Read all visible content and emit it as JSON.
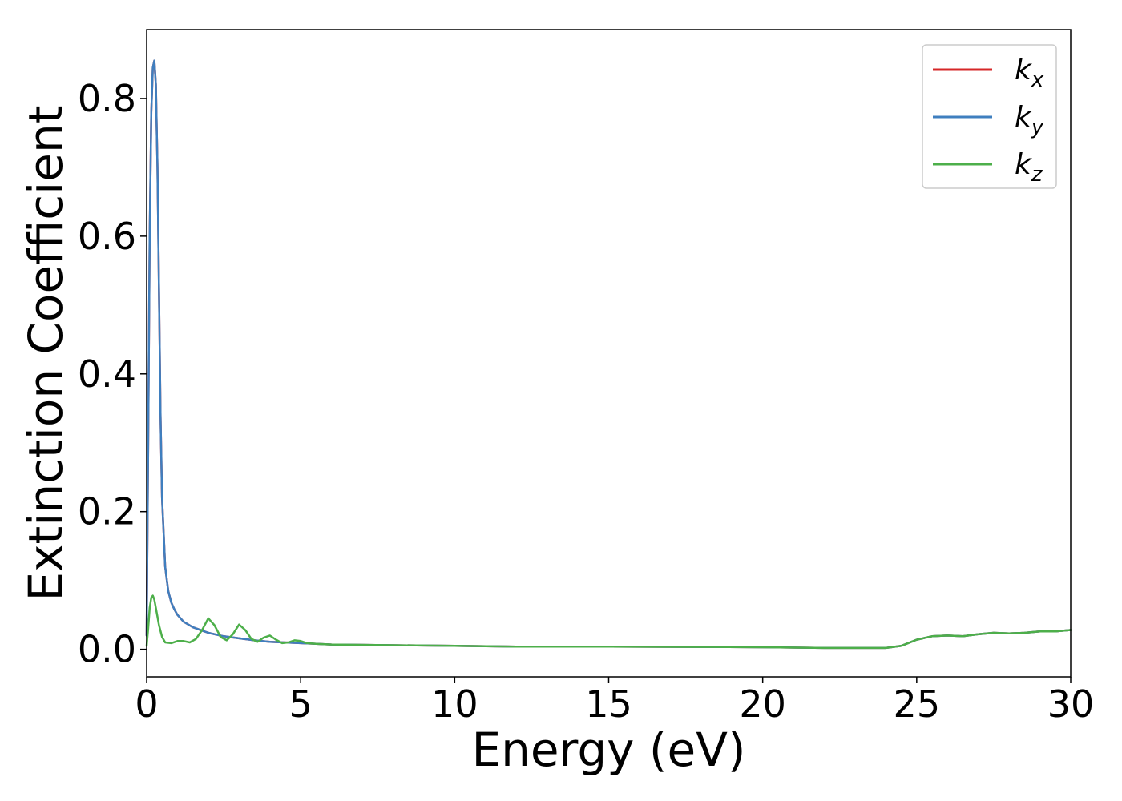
{
  "chart_data": {
    "type": "line",
    "title": "",
    "xlabel": "Energy (eV)",
    "ylabel": "Extinction Coefficient",
    "xlim": [
      0,
      30
    ],
    "ylim": [
      -0.04,
      0.9
    ],
    "xticks": [
      0,
      5,
      10,
      15,
      20,
      25,
      30
    ],
    "xtick_labels": [
      "0",
      "5",
      "10",
      "15",
      "20",
      "25",
      "30"
    ],
    "yticks": [
      0.0,
      0.2,
      0.4,
      0.6,
      0.8
    ],
    "ytick_labels": [
      "0.0",
      "0.2",
      "0.4",
      "0.6",
      "0.8"
    ],
    "grid": false,
    "legend_position": "top-right",
    "series": [
      {
        "name": "k",
        "subscript": "x",
        "color": "#d62728",
        "x": [
          0.0,
          0.05,
          0.1,
          0.15,
          0.2,
          0.25,
          0.3,
          0.35,
          0.4,
          0.45,
          0.5,
          0.6,
          0.7,
          0.8,
          0.9,
          1.0,
          1.2,
          1.5,
          2.0,
          2.5,
          3.0,
          3.5,
          4.0,
          5.0,
          6.0,
          8.0,
          10.0,
          12.0,
          15.0,
          18.0,
          20.0,
          22.0,
          24.0,
          24.5,
          25.0,
          25.5,
          26.0,
          26.5,
          27.0,
          27.5,
          28.0,
          28.5,
          29.0,
          29.5,
          30.0
        ],
        "y": [
          0.02,
          0.3,
          0.6,
          0.78,
          0.845,
          0.855,
          0.82,
          0.7,
          0.52,
          0.34,
          0.22,
          0.12,
          0.085,
          0.068,
          0.058,
          0.05,
          0.04,
          0.032,
          0.024,
          0.019,
          0.016,
          0.013,
          0.011,
          0.009,
          0.007,
          0.006,
          0.005,
          0.004,
          0.004,
          0.0035,
          0.003,
          0.002,
          0.002,
          0.005,
          0.014,
          0.019,
          0.02,
          0.019,
          0.022,
          0.024,
          0.023,
          0.024,
          0.026,
          0.026,
          0.028
        ]
      },
      {
        "name": "k",
        "subscript": "y",
        "color": "#3f7fbf",
        "x": [
          0.0,
          0.05,
          0.1,
          0.15,
          0.2,
          0.25,
          0.3,
          0.35,
          0.4,
          0.45,
          0.5,
          0.6,
          0.7,
          0.8,
          0.9,
          1.0,
          1.2,
          1.5,
          2.0,
          2.5,
          3.0,
          3.5,
          4.0,
          5.0,
          6.0,
          8.0,
          10.0,
          12.0,
          15.0,
          18.0,
          20.0,
          22.0,
          24.0,
          24.5,
          25.0,
          25.5,
          26.0,
          26.5,
          27.0,
          27.5,
          28.0,
          28.5,
          29.0,
          29.5,
          30.0
        ],
        "y": [
          0.02,
          0.3,
          0.6,
          0.78,
          0.845,
          0.855,
          0.82,
          0.7,
          0.52,
          0.34,
          0.22,
          0.12,
          0.085,
          0.068,
          0.058,
          0.05,
          0.04,
          0.032,
          0.024,
          0.019,
          0.016,
          0.013,
          0.011,
          0.009,
          0.007,
          0.006,
          0.005,
          0.004,
          0.004,
          0.0035,
          0.003,
          0.002,
          0.002,
          0.005,
          0.014,
          0.019,
          0.02,
          0.019,
          0.022,
          0.024,
          0.023,
          0.024,
          0.026,
          0.026,
          0.028
        ]
      },
      {
        "name": "k",
        "subscript": "z",
        "color": "#4daf4a",
        "x": [
          0.0,
          0.05,
          0.1,
          0.15,
          0.2,
          0.25,
          0.3,
          0.4,
          0.5,
          0.6,
          0.8,
          1.0,
          1.2,
          1.4,
          1.6,
          1.8,
          2.0,
          2.2,
          2.4,
          2.6,
          2.8,
          3.0,
          3.2,
          3.4,
          3.6,
          3.8,
          4.0,
          4.2,
          4.4,
          4.6,
          4.8,
          5.0,
          5.2,
          5.5,
          6.0,
          8.0,
          10.0,
          12.0,
          15.0,
          18.0,
          20.0,
          22.0,
          24.0,
          24.5,
          25.0,
          25.5,
          26.0,
          26.5,
          27.0,
          27.5,
          28.0,
          28.5,
          29.0,
          29.5,
          30.0
        ],
        "y": [
          0.005,
          0.03,
          0.06,
          0.075,
          0.078,
          0.072,
          0.06,
          0.035,
          0.018,
          0.01,
          0.009,
          0.012,
          0.012,
          0.01,
          0.015,
          0.028,
          0.045,
          0.035,
          0.018,
          0.013,
          0.022,
          0.036,
          0.028,
          0.015,
          0.011,
          0.017,
          0.02,
          0.014,
          0.009,
          0.01,
          0.013,
          0.012,
          0.009,
          0.008,
          0.007,
          0.006,
          0.005,
          0.004,
          0.004,
          0.0035,
          0.003,
          0.002,
          0.002,
          0.005,
          0.014,
          0.019,
          0.02,
          0.019,
          0.022,
          0.024,
          0.023,
          0.024,
          0.026,
          0.026,
          0.028
        ]
      }
    ]
  }
}
